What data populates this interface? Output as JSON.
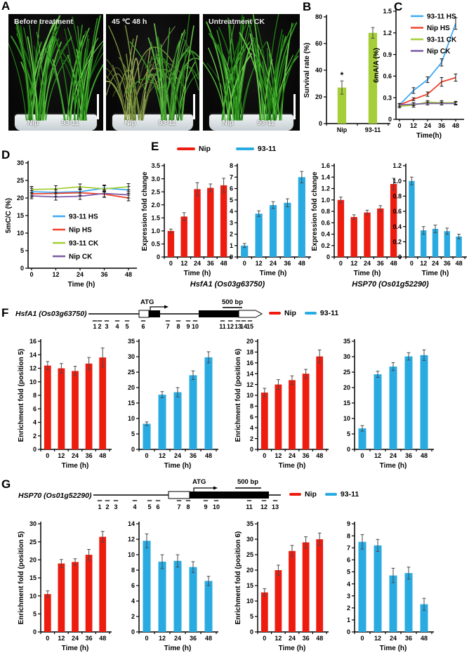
{
  "panels": {
    "a": "A",
    "b": "B",
    "c": "C",
    "d": "D",
    "e": "E",
    "f": "F",
    "g": "G"
  },
  "panel_a": {
    "photos": [
      {
        "label": "Before treatment",
        "left_plant": "Nip",
        "right_plant": "93-11"
      },
      {
        "label": "45 ℃  48 h",
        "left_plant": "Nip",
        "right_plant": "93-11"
      },
      {
        "label": "Untreatment CK",
        "left_plant": "Nip",
        "right_plant": "93-11"
      }
    ]
  },
  "panel_e": {
    "legend": {
      "nip": "Nip",
      "v93": "93-11"
    },
    "gene_left": "HsfA1 (Os03g63750)",
    "gene_right": "HSP70 (Os01g52290)"
  },
  "panel_f": {
    "gene": "HsfA1 (Os03g63750)",
    "atg": "ATG",
    "scale_bar": "500 bp",
    "legend": {
      "nip": "Nip",
      "v93": "93-11"
    },
    "positions": [
      "1",
      "2",
      "3",
      "4",
      "5",
      "6",
      "7",
      "8",
      "9",
      "10",
      "11",
      "12",
      "13",
      "14",
      "15"
    ]
  },
  "panel_g": {
    "gene": "HSP70 (Os01g52290)",
    "atg": "ATG",
    "scale_bar": "500 bp",
    "legend": {
      "nip": "Nip",
      "v93": "93-11"
    },
    "positions": [
      "1",
      "2",
      "3",
      "4",
      "5",
      "6",
      "7",
      "8",
      "9",
      "10",
      "11",
      "12",
      "13"
    ]
  },
  "colors": {
    "bar_red": "#ee1c0f",
    "bar_blue": "#29abe2",
    "bar_green": "#a6ce39",
    "line_blue": "#3fa9f5",
    "line_red": "#f0432b",
    "line_green": "#a5ce39",
    "line_purple": "#7c5ca5"
  },
  "chart_data": [
    {
      "id": "b",
      "type": "bar",
      "ylabel": "Survival rate (%)",
      "xlabel": "",
      "categories": [
        "Nip",
        "93-11"
      ],
      "ylim": [
        0,
        80
      ],
      "yticks": [
        0,
        20,
        40,
        60,
        80
      ],
      "decimals": 0,
      "series": [
        {
          "name": "Survival rate",
          "color": "#a6ce39",
          "values": [
            27,
            68
          ],
          "errors": [
            5,
            4
          ]
        }
      ],
      "annotations": [
        {
          "index": 0,
          "text": "*"
        }
      ]
    },
    {
      "id": "c",
      "type": "line",
      "ylabel": "6mA/A (%)",
      "xlabel": "Time(h)",
      "x": [
        0,
        12,
        24,
        36,
        48
      ],
      "ylim": [
        0,
        1.5
      ],
      "yticks": [
        0,
        0.3,
        0.6,
        0.9,
        1.2,
        1.5
      ],
      "decimals": 1,
      "legend_position": "upper-left",
      "series": [
        {
          "name": "93-11 HS",
          "color": "#3fa9f5",
          "values": [
            0.2,
            0.4,
            0.55,
            0.79,
            1.33
          ],
          "errors": [
            0.02,
            0.04,
            0.04,
            0.05,
            0.08
          ]
        },
        {
          "name": "Nip HS",
          "color": "#f0432b",
          "values": [
            0.2,
            0.28,
            0.35,
            0.52,
            0.58
          ],
          "errors": [
            0.02,
            0.02,
            0.03,
            0.06,
            0.05
          ]
        },
        {
          "name": "93-11 CK",
          "color": "#a5ce39",
          "values": [
            0.18,
            0.2,
            0.24,
            0.23,
            0.23
          ],
          "errors": [
            0.02,
            0.03,
            0.02,
            0.03,
            0.02
          ]
        },
        {
          "name": "Nip CK",
          "color": "#7c5ca5",
          "values": [
            0.2,
            0.21,
            0.22,
            0.22,
            0.22
          ],
          "errors": [
            0.02,
            0.02,
            0.02,
            0.02,
            0.02
          ]
        }
      ]
    },
    {
      "id": "d",
      "type": "line",
      "ylabel": "5mC/C (%)",
      "xlabel": "Time (h)",
      "x": [
        0,
        12,
        24,
        36,
        48
      ],
      "ylim": [
        0,
        30
      ],
      "yticks": [
        0,
        5,
        10,
        15,
        20,
        25,
        30
      ],
      "decimals": 0,
      "legend_position": "center",
      "series": [
        {
          "name": "93-11 HS",
          "color": "#3fa9f5",
          "values": [
            21.8,
            21.6,
            21.8,
            22.8,
            22.3
          ],
          "errors": [
            1.0,
            1.1,
            1.0,
            0.9,
            1.0
          ]
        },
        {
          "name": "Nip HS",
          "color": "#f0432b",
          "values": [
            21.2,
            21.3,
            21.5,
            21.1,
            20.0
          ],
          "errors": [
            0.9,
            1.0,
            1.0,
            0.9,
            0.8
          ]
        },
        {
          "name": "93-11 CK",
          "color": "#a5ce39",
          "values": [
            22.4,
            22.6,
            23.2,
            22.6,
            23.2
          ],
          "errors": [
            0.9,
            0.9,
            0.8,
            0.9,
            0.9
          ]
        },
        {
          "name": "Nip CK",
          "color": "#7c5ca5",
          "values": [
            20.6,
            20.3,
            20.5,
            21.3,
            20.9
          ],
          "errors": [
            0.8,
            0.9,
            0.9,
            1.0,
            0.9
          ]
        }
      ]
    },
    {
      "id": "e1",
      "type": "bar",
      "ylabel": "Expression fold change",
      "xlabel": "Time (h)",
      "categories": [
        "0",
        "12",
        "24",
        "36",
        "48"
      ],
      "ylim": [
        0,
        3.5
      ],
      "yticks": [
        0,
        0.5,
        1,
        1.5,
        2,
        2.5,
        3,
        3.5
      ],
      "decimals": 1,
      "series": [
        {
          "name": "Nip",
          "color": "#ee1c0f",
          "values": [
            1.0,
            1.55,
            2.6,
            2.65,
            2.75
          ],
          "errors": [
            0.07,
            0.15,
            0.25,
            0.15,
            0.27
          ]
        }
      ]
    },
    {
      "id": "e2",
      "type": "bar",
      "ylabel": "",
      "xlabel": "Time (h)",
      "categories": [
        "0",
        "12",
        "24",
        "36",
        "48"
      ],
      "ylim": [
        0,
        8
      ],
      "yticks": [
        0,
        1,
        2,
        3,
        4,
        5,
        6,
        7,
        8
      ],
      "decimals": 0,
      "series": [
        {
          "name": "93-11",
          "color": "#29abe2",
          "values": [
            1.0,
            3.8,
            4.55,
            4.75,
            7.0
          ],
          "errors": [
            0.18,
            0.25,
            0.3,
            0.35,
            0.5
          ]
        }
      ]
    },
    {
      "id": "e3",
      "type": "bar",
      "ylabel": "Expression fold change",
      "xlabel": "Time (h)",
      "categories": [
        "0",
        "12",
        "24",
        "36",
        "48"
      ],
      "ylim": [
        0,
        1.6
      ],
      "yticks": [
        0,
        0.2,
        0.4,
        0.6,
        0.8,
        1,
        1.2,
        1.4,
        1.6
      ],
      "decimals": 1,
      "series": [
        {
          "name": "Nip",
          "color": "#ee1c0f",
          "values": [
            1.0,
            0.7,
            0.78,
            0.85,
            1.28
          ],
          "errors": [
            0.05,
            0.04,
            0.04,
            0.05,
            0.1
          ]
        }
      ]
    },
    {
      "id": "e4",
      "type": "bar",
      "ylabel": "",
      "xlabel": "Time (h)",
      "categories": [
        "0",
        "12",
        "24",
        "36",
        "48"
      ],
      "ylim": [
        0,
        1.2
      ],
      "yticks": [
        0,
        0.2,
        0.4,
        0.6,
        0.8,
        1,
        1.2
      ],
      "decimals": 1,
      "series": [
        {
          "name": "93-11",
          "color": "#29abe2",
          "values": [
            1.0,
            0.35,
            0.37,
            0.34,
            0.27
          ],
          "errors": [
            0.05,
            0.05,
            0.05,
            0.04,
            0.03
          ]
        }
      ]
    },
    {
      "id": "f1",
      "type": "bar",
      "ylabel": "Enrichment fold (position 5)",
      "xlabel": "Time (h)",
      "categories": [
        "0",
        "12",
        "24",
        "36",
        "48"
      ],
      "ylim": [
        0,
        16
      ],
      "yticks": [
        0,
        2,
        4,
        6,
        8,
        10,
        12,
        14,
        16
      ],
      "decimals": 0,
      "series": [
        {
          "name": "Nip",
          "color": "#ee1c0f",
          "values": [
            12.4,
            12.0,
            11.6,
            12.7,
            13.6
          ],
          "errors": [
            0.6,
            0.7,
            0.7,
            0.9,
            1.4
          ]
        }
      ]
    },
    {
      "id": "f2",
      "type": "bar",
      "ylabel": "",
      "xlabel": "Time (h)",
      "categories": [
        "0",
        "12",
        "24",
        "36",
        "48"
      ],
      "ylim": [
        0,
        35
      ],
      "yticks": [
        0,
        5,
        10,
        15,
        20,
        25,
        30,
        35
      ],
      "decimals": 0,
      "series": [
        {
          "name": "93-11",
          "color": "#29abe2",
          "values": [
            8.3,
            17.7,
            18.5,
            24.0,
            29.8
          ],
          "errors": [
            0.6,
            1.0,
            1.5,
            1.4,
            1.8
          ]
        }
      ]
    },
    {
      "id": "f3",
      "type": "bar",
      "ylabel": "Enrichment fold (position 6)",
      "xlabel": "Time (h)",
      "categories": [
        "0",
        "12",
        "24",
        "36",
        "48"
      ],
      "ylim": [
        0,
        20
      ],
      "yticks": [
        0,
        2,
        4,
        6,
        8,
        10,
        12,
        14,
        16,
        18,
        20
      ],
      "decimals": 0,
      "series": [
        {
          "name": "Nip",
          "color": "#ee1c0f",
          "values": [
            10.5,
            12.0,
            12.8,
            14.0,
            17.2
          ],
          "errors": [
            0.8,
            0.9,
            0.8,
            0.8,
            1.2
          ]
        }
      ]
    },
    {
      "id": "f4",
      "type": "bar",
      "ylabel": "",
      "xlabel": "Time (h)",
      "categories": [
        "0",
        "12",
        "24",
        "36",
        "48"
      ],
      "ylim": [
        0,
        35
      ],
      "yticks": [
        0,
        5,
        10,
        15,
        20,
        25,
        30,
        35
      ],
      "decimals": 0,
      "series": [
        {
          "name": "93-11",
          "color": "#29abe2",
          "values": [
            6.8,
            24.3,
            26.8,
            30.1,
            30.5
          ],
          "errors": [
            0.9,
            1.0,
            1.3,
            1.2,
            1.7
          ]
        }
      ]
    },
    {
      "id": "g1",
      "type": "bar",
      "ylabel": "Enrichment fold (position 5)",
      "xlabel": "Time (h)",
      "categories": [
        "0",
        "12",
        "24",
        "36",
        "48"
      ],
      "ylim": [
        0,
        30
      ],
      "yticks": [
        0,
        5,
        10,
        15,
        20,
        25,
        30
      ],
      "decimals": 0,
      "series": [
        {
          "name": "Nip",
          "color": "#ee1c0f",
          "values": [
            10.5,
            19.0,
            19.4,
            21.4,
            26.4
          ],
          "errors": [
            0.9,
            1.1,
            0.9,
            1.5,
            1.5
          ]
        }
      ]
    },
    {
      "id": "g2",
      "type": "bar",
      "ylabel": "",
      "xlabel": "Time (h)",
      "categories": [
        "0",
        "12",
        "24",
        "36",
        "48"
      ],
      "ylim": [
        0,
        14
      ],
      "yticks": [
        0,
        2,
        4,
        6,
        8,
        10,
        12,
        14
      ],
      "decimals": 0,
      "series": [
        {
          "name": "93-11",
          "color": "#29abe2",
          "values": [
            11.8,
            9.1,
            9.2,
            8.4,
            6.6
          ],
          "errors": [
            0.9,
            0.9,
            0.8,
            0.7,
            0.6
          ]
        }
      ]
    },
    {
      "id": "g3",
      "type": "bar",
      "ylabel": "Enrichment fold (position 6)",
      "xlabel": "Time (h)",
      "categories": [
        "0",
        "12",
        "24",
        "36",
        "48"
      ],
      "ylim": [
        0,
        35
      ],
      "yticks": [
        0,
        5,
        10,
        15,
        20,
        25,
        30,
        35
      ],
      "decimals": 0,
      "series": [
        {
          "name": "Nip",
          "color": "#ee1c0f",
          "values": [
            12.8,
            20.0,
            26.2,
            29.0,
            30.0
          ],
          "errors": [
            1.2,
            1.6,
            1.8,
            1.8,
            2.0
          ]
        }
      ]
    },
    {
      "id": "g4",
      "type": "bar",
      "ylabel": "",
      "xlabel": "Time (h)",
      "categories": [
        "0",
        "12",
        "24",
        "36",
        "48"
      ],
      "ylim": [
        0,
        9
      ],
      "yticks": [
        0,
        1,
        2,
        3,
        4,
        5,
        6,
        7,
        8,
        9
      ],
      "decimals": 0,
      "series": [
        {
          "name": "93-11",
          "color": "#29abe2",
          "values": [
            7.5,
            7.2,
            4.7,
            4.9,
            2.3
          ],
          "errors": [
            0.6,
            0.5,
            0.6,
            0.5,
            0.5
          ]
        }
      ]
    }
  ]
}
